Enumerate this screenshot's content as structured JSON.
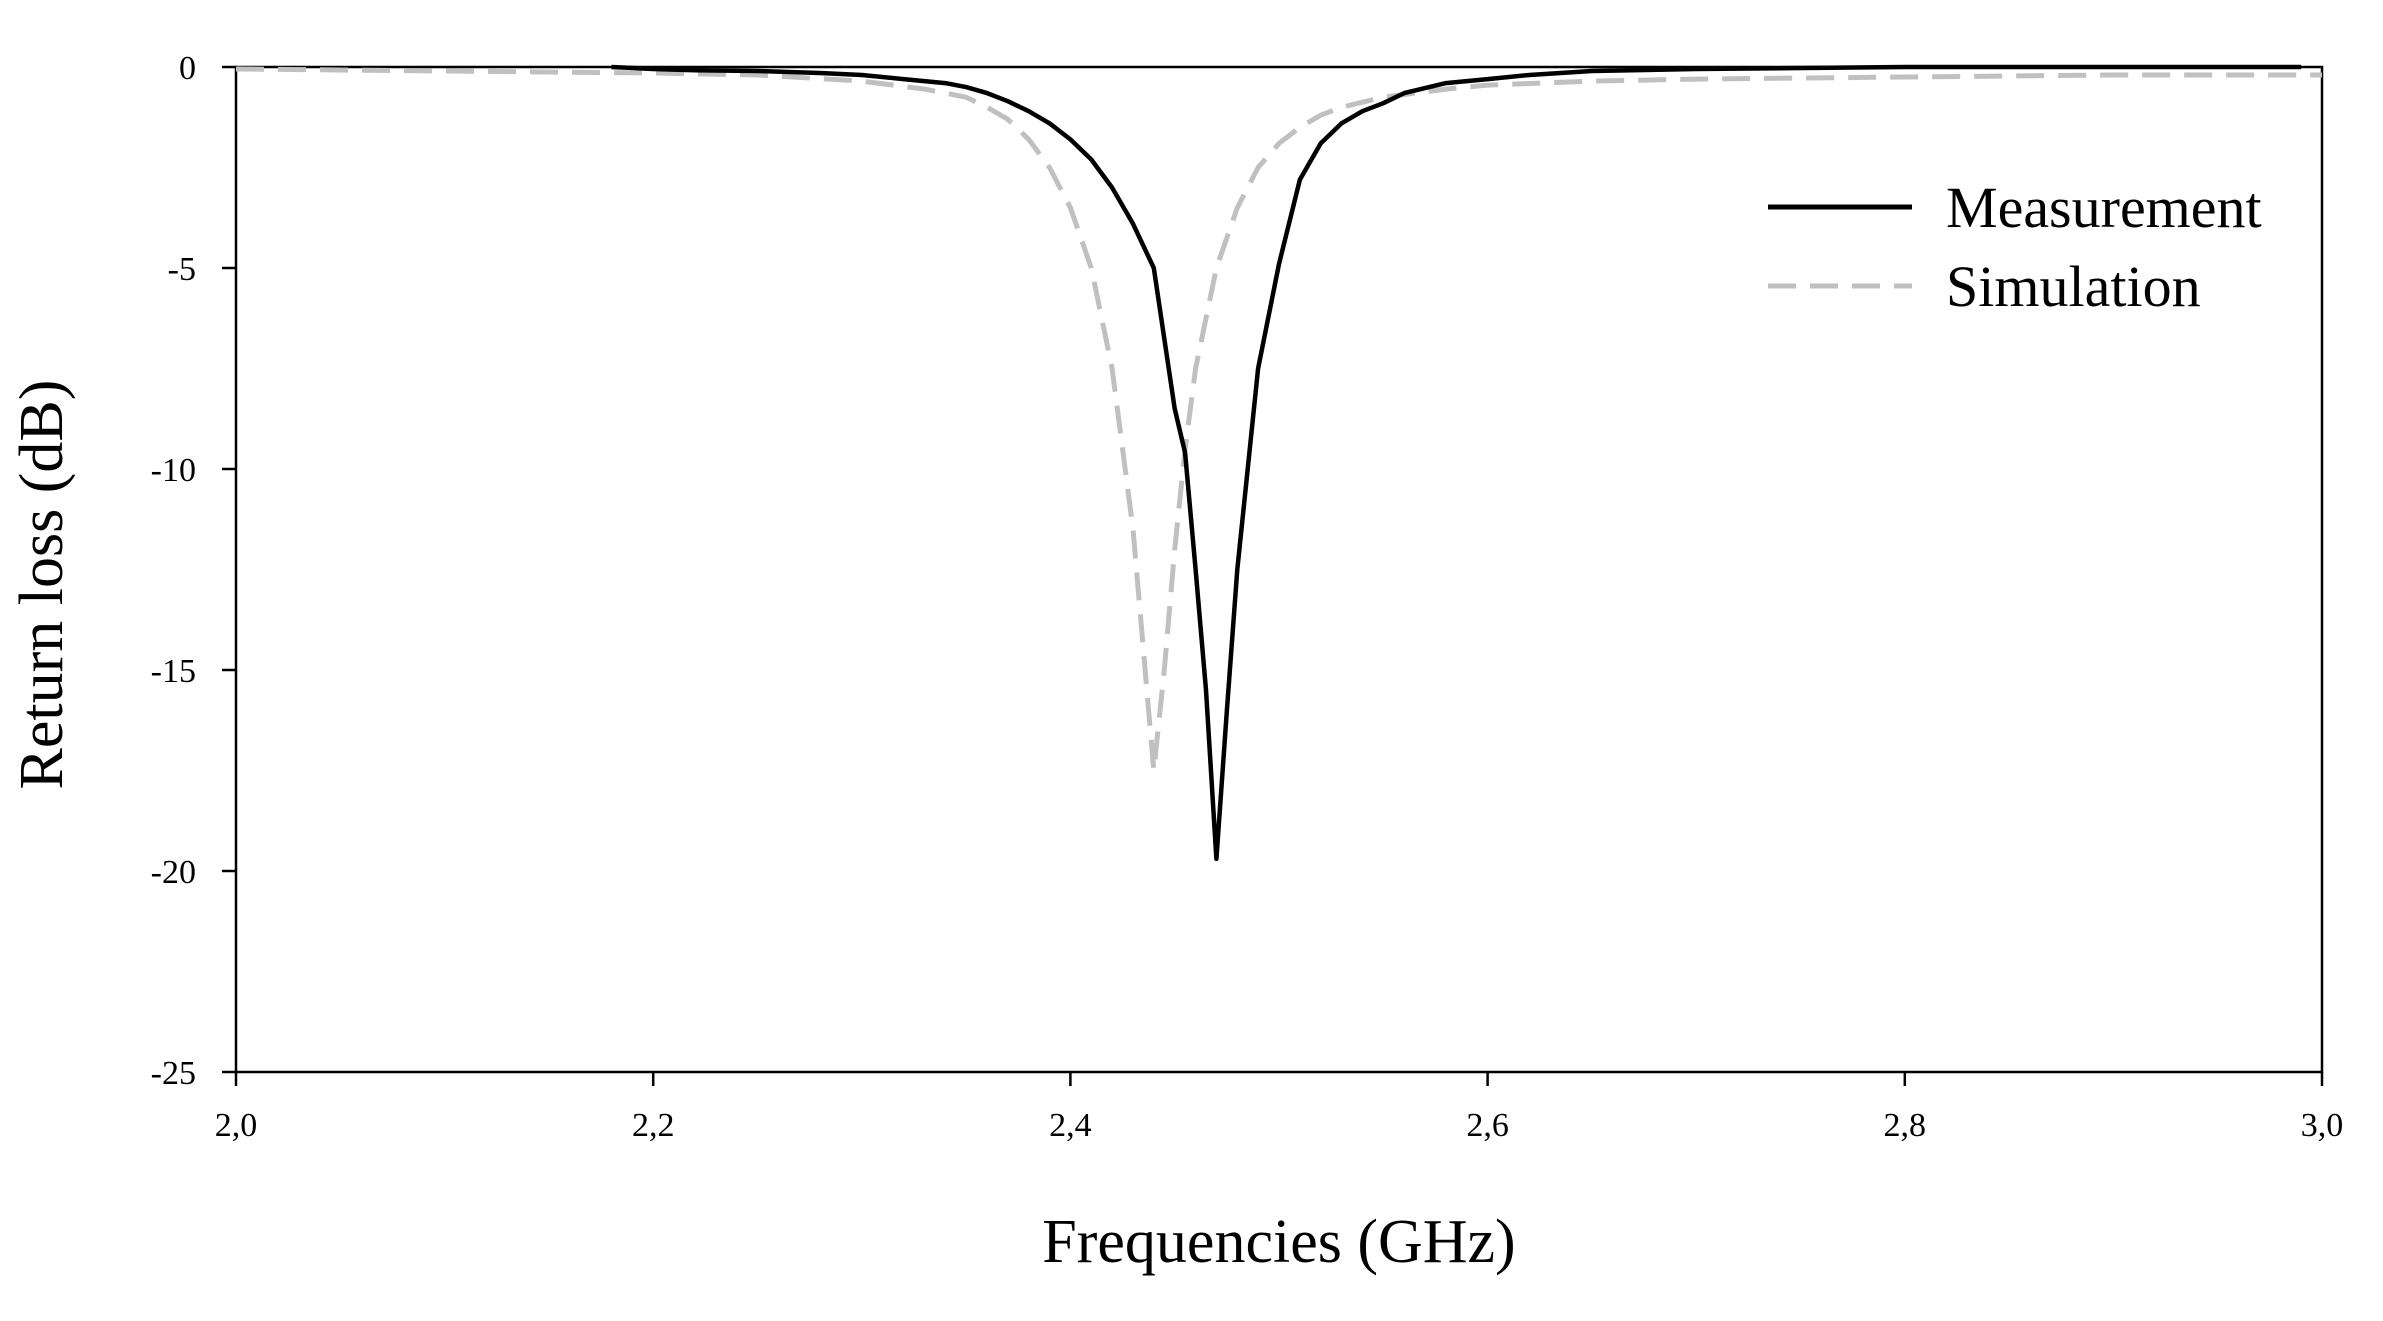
{
  "chart_data": {
    "type": "line",
    "xlabel": "Frequencies (GHz)",
    "ylabel": "Return loss (dB)",
    "xlim": [
      2.0,
      3.0
    ],
    "ylim": [
      -25,
      0
    ],
    "x_ticks": [
      "2,0",
      "2,2",
      "2,4",
      "2,6",
      "2,8",
      "3,0"
    ],
    "y_ticks": [
      "0",
      "-5",
      "-10",
      "-15",
      "-20",
      "-25"
    ],
    "grid": false,
    "legend_position": "top-right",
    "series": [
      {
        "name": "Measurement",
        "color": "#000000",
        "style": "solid",
        "x": [
          2.18,
          2.2,
          2.22,
          2.25,
          2.28,
          2.3,
          2.32,
          2.34,
          2.35,
          2.36,
          2.37,
          2.38,
          2.39,
          2.4,
          2.41,
          2.42,
          2.43,
          2.44,
          2.45,
          2.455,
          2.46,
          2.465,
          2.47,
          2.475,
          2.48,
          2.485,
          2.49,
          2.5,
          2.51,
          2.52,
          2.53,
          2.54,
          2.55,
          2.56,
          2.58,
          2.6,
          2.62,
          2.65,
          2.7,
          2.8,
          2.9,
          2.95,
          2.99
        ],
        "y": [
          0.0,
          -0.05,
          -0.08,
          -0.1,
          -0.15,
          -0.2,
          -0.3,
          -0.4,
          -0.5,
          -0.65,
          -0.85,
          -1.1,
          -1.4,
          -1.8,
          -2.3,
          -3.0,
          -3.9,
          -5.0,
          -8.5,
          -9.6,
          -12.5,
          -15.5,
          -19.7,
          -16.0,
          -12.5,
          -10.0,
          -7.5,
          -4.9,
          -2.8,
          -1.9,
          -1.4,
          -1.1,
          -0.9,
          -0.65,
          -0.4,
          -0.3,
          -0.2,
          -0.1,
          -0.05,
          0.0,
          0.0,
          0.0,
          0.0
        ]
      },
      {
        "name": "Simulation",
        "color": "#c0c0c0",
        "style": "dashed",
        "x": [
          2.0,
          2.1,
          2.2,
          2.25,
          2.3,
          2.33,
          2.35,
          2.36,
          2.37,
          2.38,
          2.39,
          2.4,
          2.41,
          2.42,
          2.43,
          2.435,
          2.44,
          2.445,
          2.45,
          2.455,
          2.46,
          2.47,
          2.48,
          2.49,
          2.5,
          2.51,
          2.52,
          2.53,
          2.55,
          2.58,
          2.6,
          2.65,
          2.7,
          2.8,
          2.9,
          3.0
        ],
        "y": [
          -0.05,
          -0.1,
          -0.15,
          -0.2,
          -0.35,
          -0.55,
          -0.75,
          -1.0,
          -1.3,
          -1.8,
          -2.5,
          -3.5,
          -5.0,
          -7.5,
          -11.5,
          -14.5,
          -17.5,
          -15.0,
          -12.0,
          -9.5,
          -7.5,
          -5.0,
          -3.5,
          -2.5,
          -1.9,
          -1.5,
          -1.2,
          -1.0,
          -0.75,
          -0.55,
          -0.45,
          -0.35,
          -0.3,
          -0.25,
          -0.2,
          -0.2
        ]
      }
    ]
  }
}
